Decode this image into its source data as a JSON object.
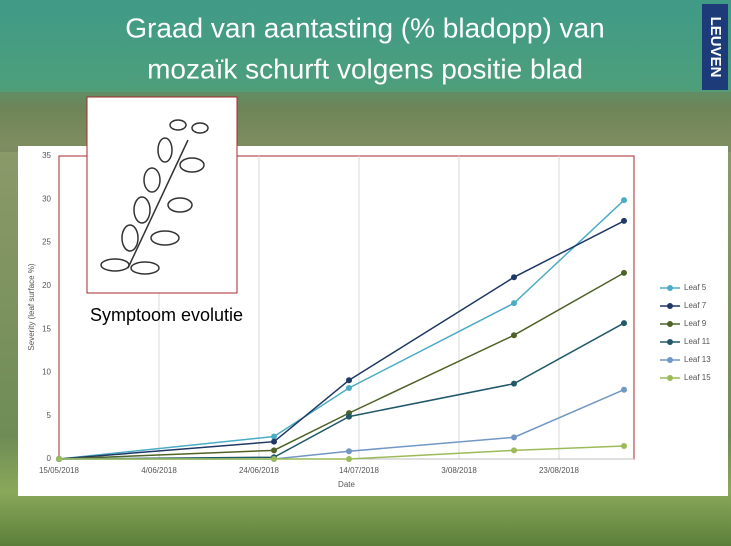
{
  "title": [
    "Graad van aantasting (% bladopp) van",
    "mozaïk schurft volgens positie blad"
  ],
  "logo": "LEUVEN",
  "inset_caption": "Symptoom evolutie",
  "chart_data": {
    "type": "line",
    "x_label": "Date",
    "y_label": "Severity (leaf surface %)",
    "x": [
      "2018-05-15",
      "2018-06-27",
      "2018-07-12",
      "2018-08-14",
      "2018-09-05"
    ],
    "xlim": [
      "2018-05-15",
      "2018-09-07"
    ],
    "xticks": [
      {
        "value": "2018-05-15",
        "label": "15/05/2018"
      },
      {
        "value": "2018-06-04",
        "label": "4/06/2018"
      },
      {
        "value": "2018-06-24",
        "label": "24/06/2018"
      },
      {
        "value": "2018-07-14",
        "label": "14/07/2018"
      },
      {
        "value": "2018-08-03",
        "label": "3/08/2018"
      },
      {
        "value": "2018-08-23",
        "label": "23/08/2018"
      }
    ],
    "ylim": [
      0,
      35
    ],
    "yticks": [
      0,
      5,
      10,
      15,
      20,
      25,
      30,
      35
    ],
    "grid": true,
    "series": [
      {
        "name": "Leaf 5",
        "color": "#4bacc6",
        "values": [
          0,
          2.6,
          8.2,
          18,
          29.9
        ]
      },
      {
        "name": "Leaf 7",
        "color": "#1f3864",
        "values": [
          0,
          2,
          9.1,
          21,
          27.5
        ]
      },
      {
        "name": "Leaf 9",
        "color": "#4f6228",
        "values": [
          0,
          1,
          5.3,
          14.3,
          21.5
        ]
      },
      {
        "name": "Leaf 11",
        "color": "#215968",
        "values": [
          0,
          0.2,
          4.9,
          8.7,
          15.7
        ]
      },
      {
        "name": "Leaf 13",
        "color": "#7197c4",
        "values": [
          0,
          0,
          0.9,
          2.5,
          8
        ]
      },
      {
        "name": "Leaf 15",
        "color": "#9bbb59",
        "values": [
          0,
          0,
          0,
          1,
          1.5
        ]
      }
    ]
  }
}
